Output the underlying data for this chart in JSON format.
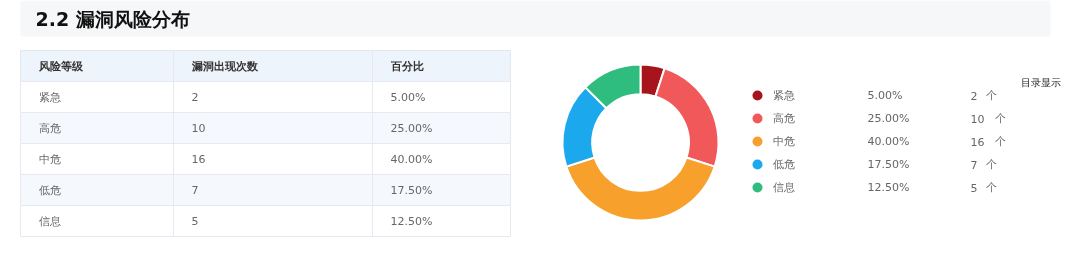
{
  "chart_data": {
    "type": "donut",
    "title": "2.2 漏洞风险分布",
    "categories": [
      "紧急",
      "高危",
      "中危",
      "低危",
      "信息"
    ],
    "values": [
      5,
      25,
      40,
      17.5,
      12.5
    ],
    "colors": [
      "#a8141b",
      "#f0585a",
      "#f7a12c",
      "#1ba8ec",
      "#2ebd7f"
    ],
    "value_labels": [
      "5.00%",
      "25.00%",
      "40.00%",
      "17.50%",
      "12.50%"
    ],
    "legend": "right",
    "annotations": [
      "风险等级",
      "漏洞出现次数",
      "百分比",
      "2",
      "10",
      "16",
      "7",
      "5",
      "个",
      "目录显示"
    ]
  }
}
